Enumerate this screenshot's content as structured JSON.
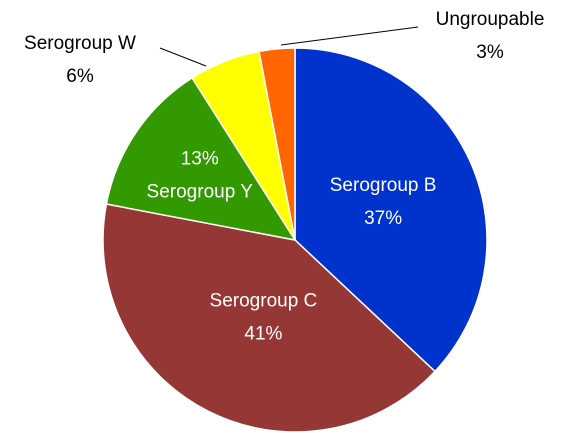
{
  "chart_data": {
    "type": "pie",
    "categories": [
      "Serogroup B",
      "Serogroup C",
      "Serogroup Y",
      "Serogroup W",
      "Ungroupable"
    ],
    "values": [
      37,
      41,
      13,
      6,
      3
    ],
    "value_labels": [
      "37%",
      "41%",
      "13%",
      "6%",
      "3%"
    ],
    "colors": [
      "#0033cc",
      "#953735",
      "#339900",
      "#ffff00",
      "#ff6600"
    ]
  }
}
